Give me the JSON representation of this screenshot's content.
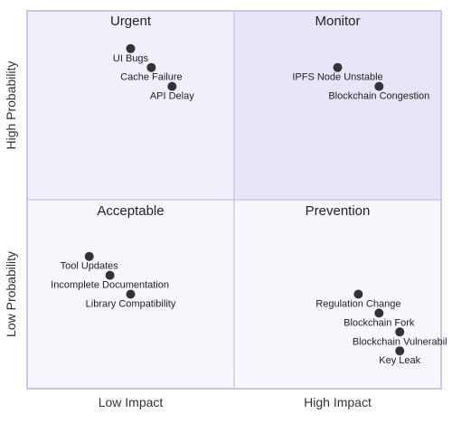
{
  "chart_data": {
    "type": "scatter",
    "title": "",
    "quadrants": {
      "top_left": "Urgent",
      "top_right": "Monitor",
      "bottom_left": "Acceptable",
      "bottom_right": "Prevention"
    },
    "x_axis": {
      "left": "Low Impact",
      "right": "High Impact"
    },
    "y_axis": {
      "bottom": "Low Probability",
      "top": "High Probability"
    },
    "xlim": [
      0,
      1
    ],
    "ylim": [
      0,
      1
    ],
    "quadrant_fills": {
      "top_left": "#f0f0fb",
      "top_right": "#e6e6f8",
      "bottom_left": "#f6f6fd",
      "bottom_right": "#f7f7fd"
    },
    "grid_color": "#c8c8ec",
    "point_color": "#333333",
    "points": [
      {
        "label": "UI Bugs",
        "x": 0.25,
        "y": 0.9
      },
      {
        "label": "Cache Failure",
        "x": 0.3,
        "y": 0.85
      },
      {
        "label": "API Delay",
        "x": 0.35,
        "y": 0.8
      },
      {
        "label": "IPFS Node Unstable",
        "x": 0.75,
        "y": 0.85
      },
      {
        "label": "Blockchain Congestion",
        "x": 0.85,
        "y": 0.8
      },
      {
        "label": "Tool Updates",
        "x": 0.15,
        "y": 0.35
      },
      {
        "label": "Incomplete Documentation",
        "x": 0.2,
        "y": 0.3
      },
      {
        "label": "Library Compatibility",
        "x": 0.25,
        "y": 0.25
      },
      {
        "label": "Regulation Change",
        "x": 0.8,
        "y": 0.25
      },
      {
        "label": "Blockchain Fork",
        "x": 0.85,
        "y": 0.2
      },
      {
        "label": "Blockchain Vulnerabil",
        "x": 0.9,
        "y": 0.15
      },
      {
        "label": "Key Leak",
        "x": 0.9,
        "y": 0.1
      }
    ]
  }
}
